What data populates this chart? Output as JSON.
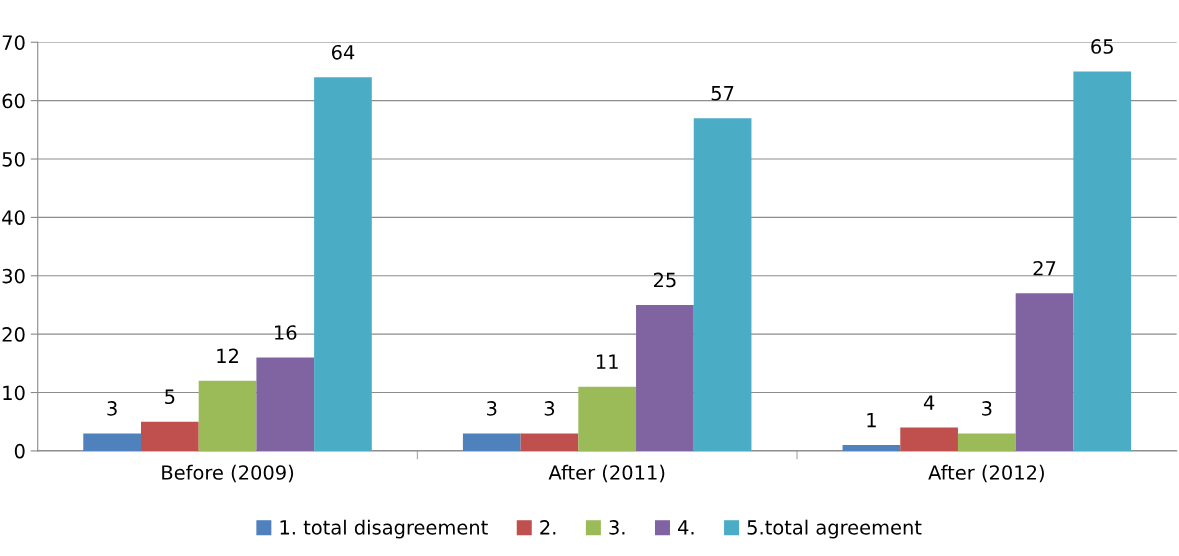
{
  "chart_data": {
    "type": "bar",
    "categories": [
      "Before (2009)",
      "After (2011)",
      "After (2012)"
    ],
    "series": [
      {
        "name": "1. total disagreement",
        "color": "#4f81bd",
        "values": [
          3,
          3,
          1
        ]
      },
      {
        "name": "2.",
        "color": "#c0504d",
        "values": [
          5,
          3,
          4
        ]
      },
      {
        "name": "3.",
        "color": "#9bbb59",
        "values": [
          12,
          11,
          3
        ]
      },
      {
        "name": "4.",
        "color": "#8064a2",
        "values": [
          16,
          25,
          27
        ]
      },
      {
        "name": "5.total agreement",
        "color": "#4bacc6",
        "values": [
          64,
          57,
          65
        ]
      }
    ],
    "ylim": [
      0,
      70
    ],
    "yticks": [
      0,
      10,
      20,
      30,
      40,
      50,
      60,
      70
    ],
    "grid": "y",
    "legend": "bottom",
    "data_labels": true
  }
}
